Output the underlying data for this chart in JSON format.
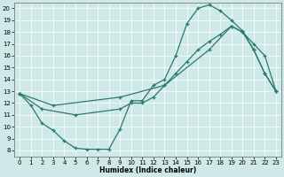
{
  "xlabel": "Humidex (Indice chaleur)",
  "bg_color": "#cfe9e9",
  "line_color": "#2a7a6a",
  "xlim": [
    -0.5,
    23.5
  ],
  "ylim": [
    7.5,
    20.5
  ],
  "xticks": [
    0,
    1,
    2,
    3,
    4,
    5,
    6,
    7,
    8,
    9,
    10,
    11,
    12,
    13,
    14,
    15,
    16,
    17,
    18,
    19,
    20,
    21,
    22,
    23
  ],
  "yticks": [
    8,
    9,
    10,
    11,
    12,
    13,
    14,
    15,
    16,
    17,
    18,
    19,
    20
  ],
  "line1_x": [
    0,
    1,
    2,
    3,
    4,
    5,
    6,
    7,
    8,
    9,
    10,
    11,
    12,
    13,
    14,
    15,
    16,
    17,
    18,
    19,
    20,
    21,
    22,
    23
  ],
  "line1_y": [
    12.8,
    11.8,
    10.3,
    9.7,
    8.8,
    8.2,
    8.1,
    8.1,
    8.1,
    9.8,
    12.2,
    12.2,
    13.5,
    14.0,
    16.0,
    18.7,
    20.0,
    20.3,
    19.8,
    19.0,
    18.1,
    16.5,
    14.5,
    13.0
  ],
  "line2_x": [
    0,
    2,
    5,
    9,
    10,
    11,
    12,
    13,
    14,
    15,
    16,
    17,
    18,
    19,
    20,
    21,
    22,
    23
  ],
  "line2_y": [
    12.8,
    11.5,
    11.0,
    11.5,
    12.0,
    12.0,
    12.5,
    13.5,
    14.5,
    15.5,
    16.5,
    17.2,
    17.8,
    18.5,
    18.0,
    17.0,
    16.0,
    13.0
  ],
  "line3_x": [
    0,
    3,
    9,
    13,
    17,
    19,
    20,
    21,
    22,
    23
  ],
  "line3_y": [
    12.8,
    11.8,
    12.5,
    13.5,
    16.5,
    18.5,
    18.0,
    16.5,
    14.5,
    13.0
  ]
}
